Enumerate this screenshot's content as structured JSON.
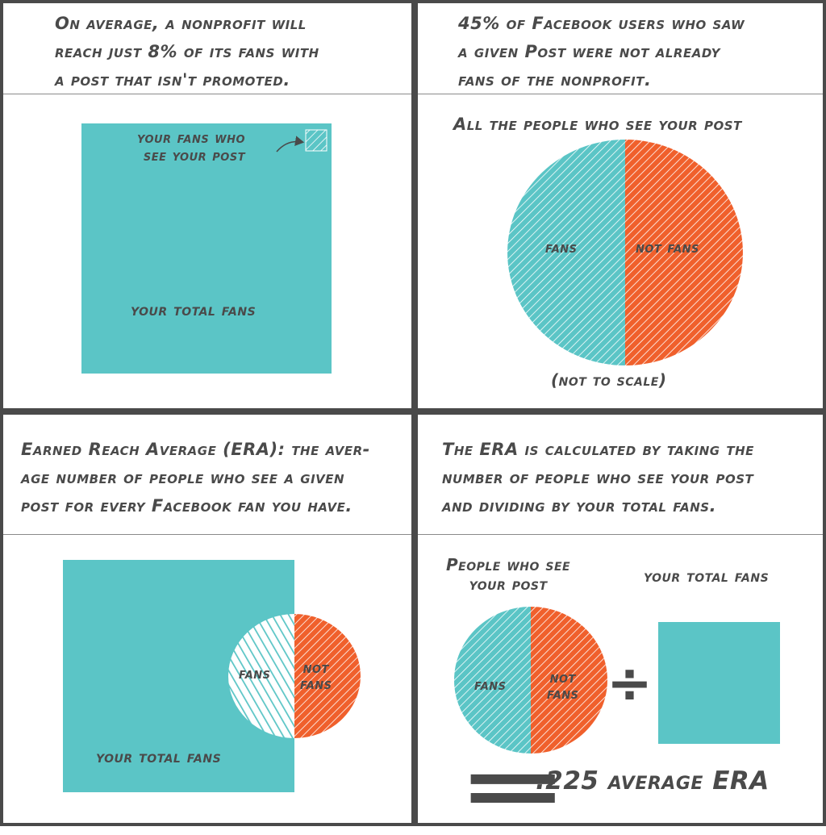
{
  "colors": {
    "teal": "#5bc5c6",
    "orange": "#f0602c",
    "ink": "#4a4a4a",
    "border": "#4a4a4a"
  },
  "panels": {
    "top_left": {
      "caption_lines": [
        "On average, a nonprofit will",
        "reach just 8% of its fans with",
        "a post that isn't promoted."
      ],
      "inset_label_lines": [
        "your fans who",
        "see your post"
      ],
      "square_label": "your total fans"
    },
    "top_right": {
      "caption_lines": [
        "45% of Facebook users who saw",
        "a given Post were not already",
        "fans of the nonprofit."
      ],
      "pie_title": "All the people who see your post",
      "slice_fans": "fans",
      "slice_not_fans": "not fans",
      "note": "(not to scale)"
    },
    "bottom_left": {
      "caption_lines": [
        "Earned Reach Average (ERA): the aver-",
        "age number of people who see a given",
        "post for every Facebook fan you have."
      ],
      "overlap_fans": "fans",
      "overlap_not_fans_lines": [
        "not",
        "fans"
      ],
      "square_label": "your total fans"
    },
    "bottom_right": {
      "caption_lines": [
        "The ERA is calculated by taking the",
        "number of people who see your post",
        "and dividing by your total fans."
      ],
      "pie_label_lines": [
        "People who see",
        "your post"
      ],
      "square_label": "your total fans",
      "slice_fans": "fans",
      "slice_not_fans_lines": [
        "not",
        "fans"
      ],
      "operator": "÷",
      "equals": "=",
      "result": ".225 average ERA"
    }
  }
}
